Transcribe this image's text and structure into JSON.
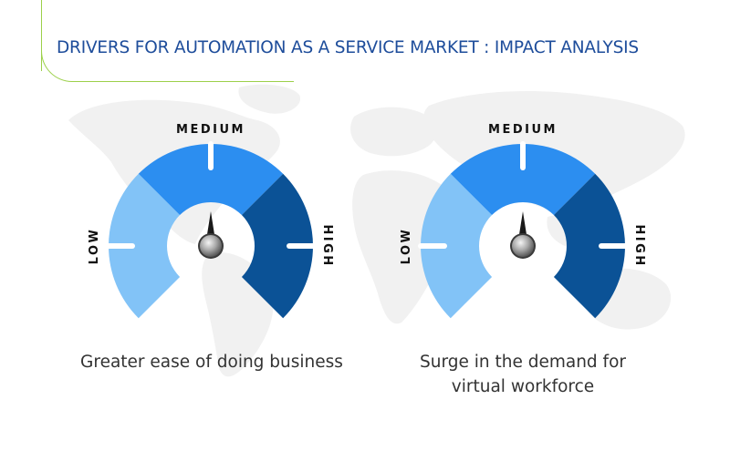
{
  "title": "DRIVERS FOR AUTOMATION AS A SERVICE MARKET : IMPACT ANALYSIS",
  "colors": {
    "title": "#1e4d9b",
    "frame": "#9cd04a",
    "low": "#82c3f7",
    "medium": "#2c8ef0",
    "high": "#0b5296",
    "map": "#f1f1f1",
    "label": "#111111",
    "caption": "#333333"
  },
  "chart_data": [
    {
      "type": "gauge",
      "scale": [
        "LOW",
        "MEDIUM",
        "HIGH"
      ],
      "impact": "MEDIUM",
      "caption": "Greater ease of doing business"
    },
    {
      "type": "gauge",
      "scale": [
        "LOW",
        "MEDIUM",
        "HIGH"
      ],
      "impact": "MEDIUM",
      "caption": "Surge in the demand for\nvirtual workforce"
    }
  ]
}
